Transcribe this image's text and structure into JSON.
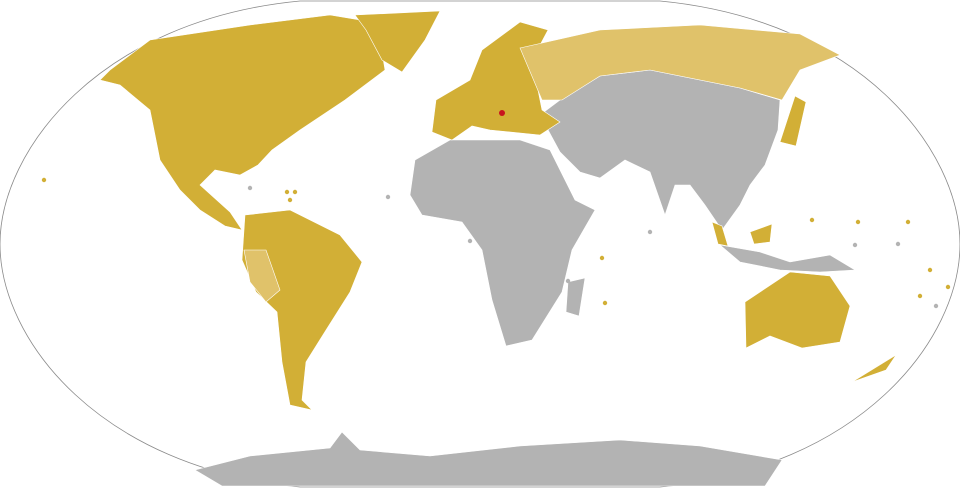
{
  "map": {
    "projection": "robinson",
    "colors": {
      "primary": "#d2af36",
      "secondary": "#e0c26a",
      "highlight": "#c8141e",
      "other": "#b3b3b3",
      "ocean": "#ffffff",
      "frame": "#8a8a8a"
    }
  }
}
